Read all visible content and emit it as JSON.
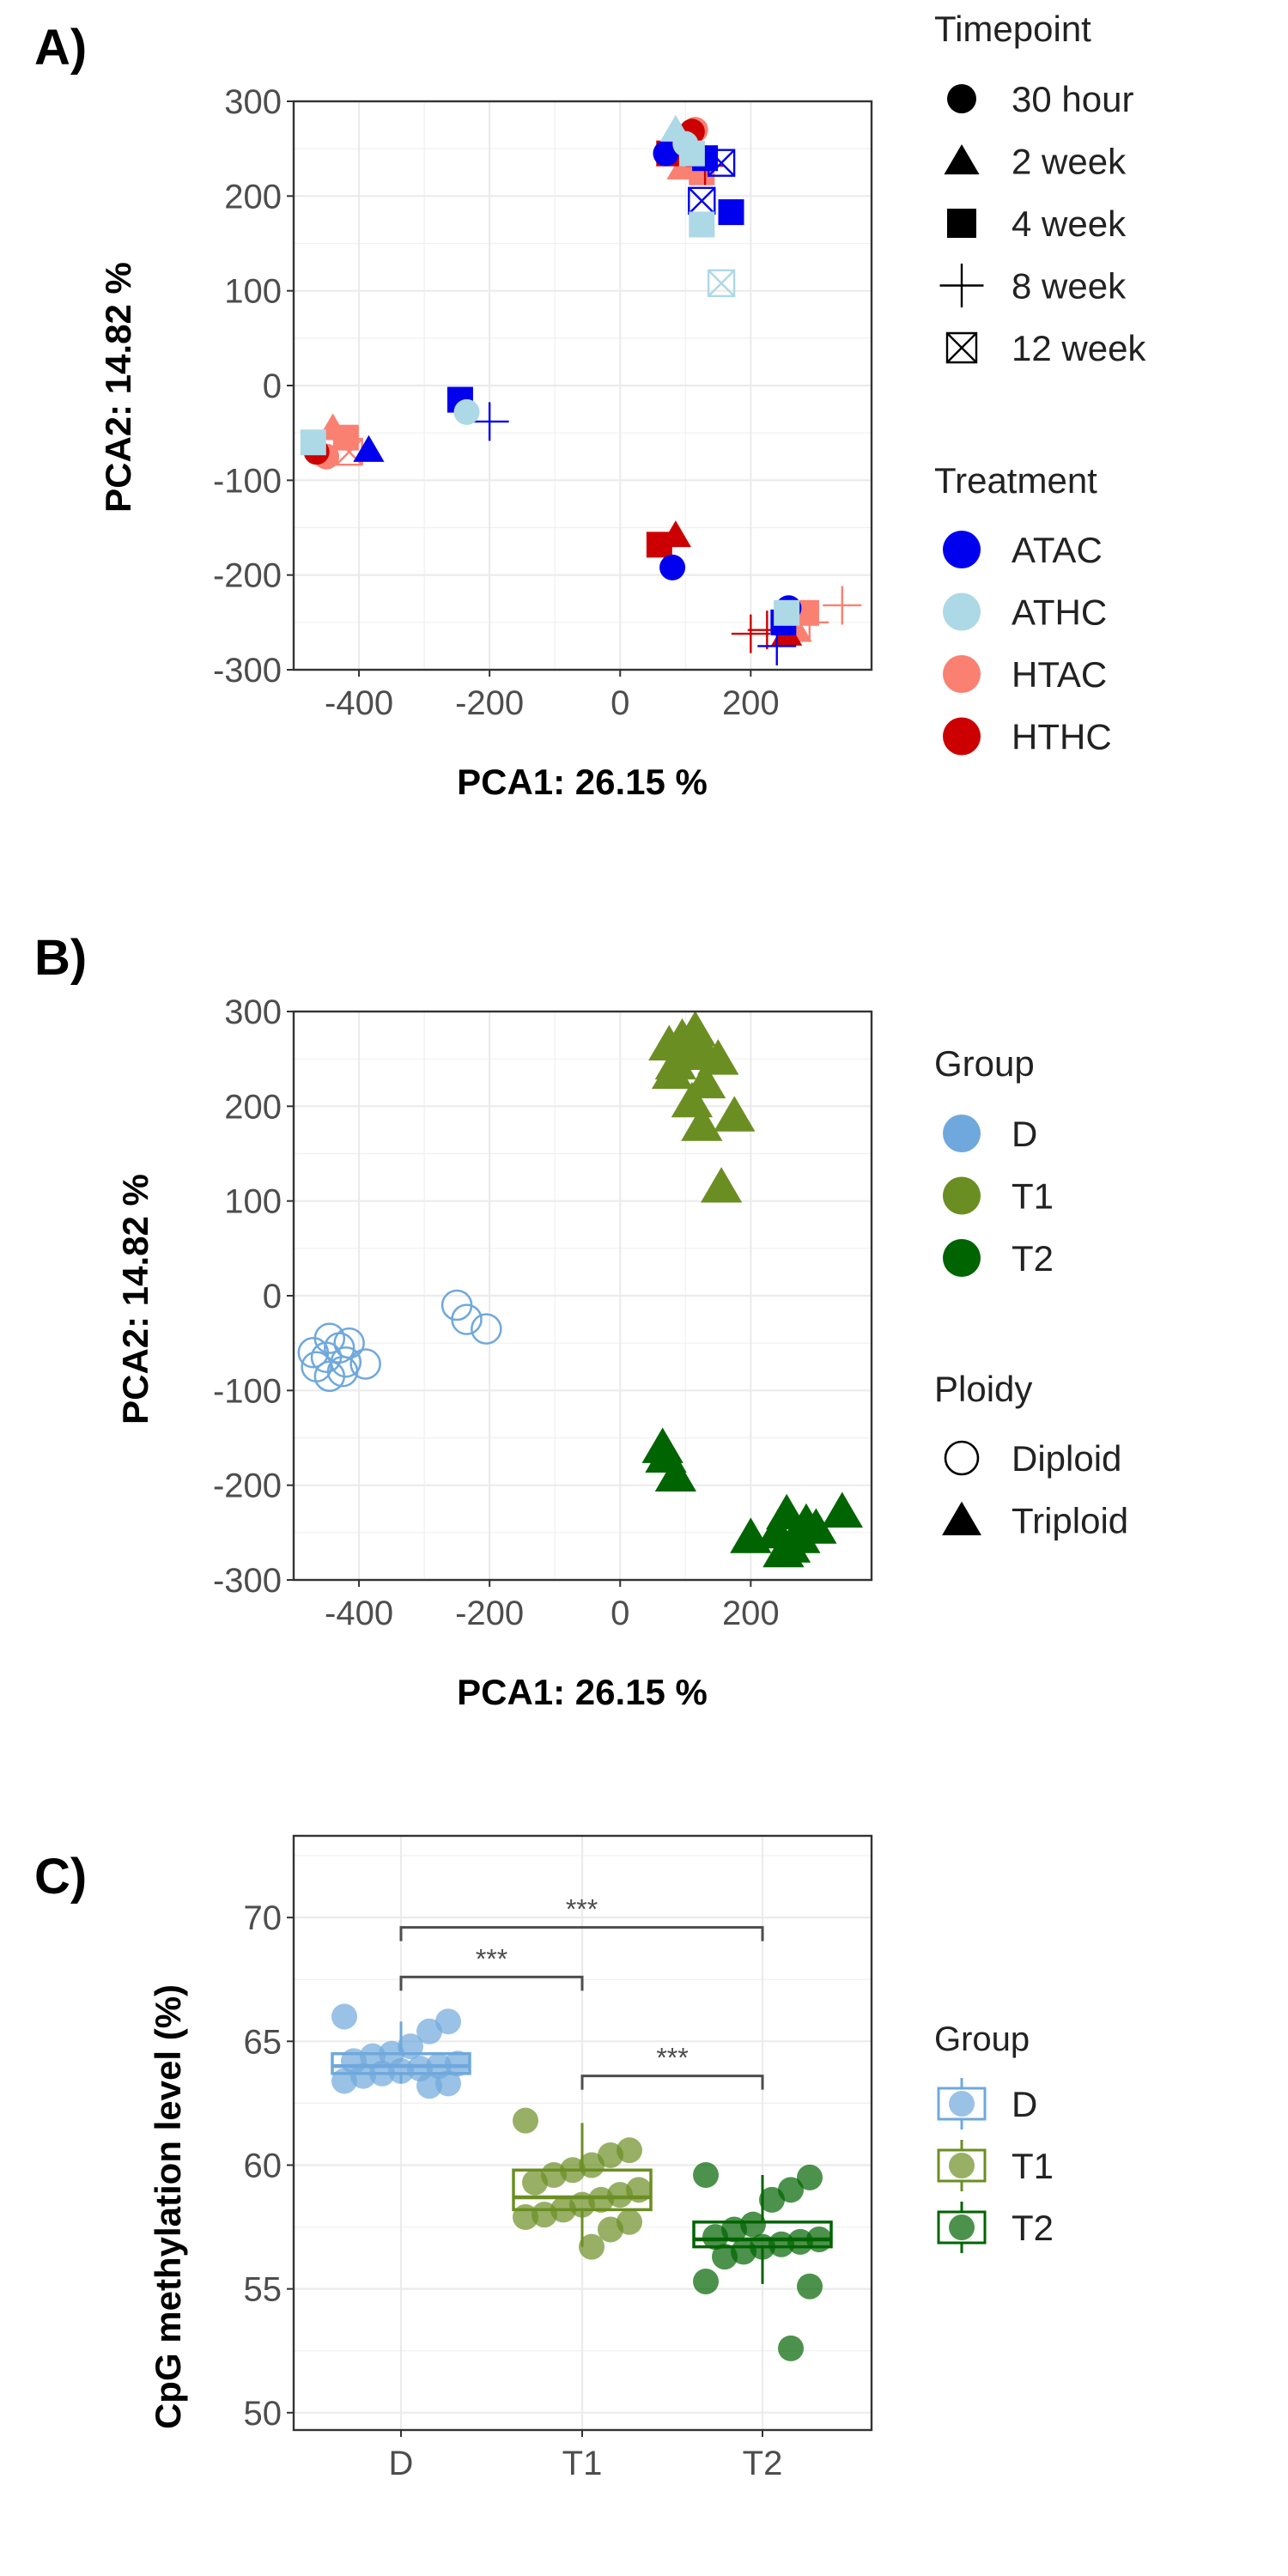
{
  "panels": {
    "a": {
      "letter": "A)",
      "xlabel": "PCA1: 26.15 %",
      "ylabel": "PCA2: 14.82 %",
      "xticks": [
        "-400",
        "-200",
        "0",
        "200"
      ],
      "yticks": [
        "300",
        "200",
        "100",
        "0",
        "-100",
        "-200",
        "-300"
      ],
      "legend_timepoint": {
        "title": "Timepoint",
        "items": [
          {
            "label": "30 hour",
            "shape": "circle"
          },
          {
            "label": "2 week",
            "shape": "triangle"
          },
          {
            "label": "4 week",
            "shape": "square"
          },
          {
            "label": "8 week",
            "shape": "plus"
          },
          {
            "label": "12 week",
            "shape": "boxed-x"
          }
        ]
      },
      "legend_treatment": {
        "title": "Treatment",
        "items": [
          {
            "label": "ATAC",
            "color": "#0000EE"
          },
          {
            "label": "ATHC",
            "color": "#ADD8E6"
          },
          {
            "label": "HTAC",
            "color": "#FA8072"
          },
          {
            "label": "HTHC",
            "color": "#CC0000"
          }
        ]
      }
    },
    "b": {
      "letter": "B)",
      "xlabel": "PCA1: 26.15 %",
      "ylabel": "PCA2: 14.82 %",
      "xticks": [
        "-400",
        "-200",
        "0",
        "200"
      ],
      "yticks": [
        "300",
        "200",
        "100",
        "0",
        "-100",
        "-200",
        "-300"
      ],
      "legend_group": {
        "title": "Group",
        "items": [
          {
            "label": "D",
            "color": "#6FA8DC"
          },
          {
            "label": "T1",
            "color": "#6B8E23"
          },
          {
            "label": "T2",
            "color": "#006400"
          }
        ]
      },
      "legend_ploidy": {
        "title": "Ploidy",
        "items": [
          {
            "label": "Diploid",
            "shape": "open-circle"
          },
          {
            "label": "Triploid",
            "shape": "triangle"
          }
        ]
      }
    },
    "c": {
      "letter": "C)",
      "ylabel": "CpG methylation level (%)",
      "xticks": [
        "D",
        "T1",
        "T2"
      ],
      "yticks": [
        "70",
        "65",
        "60",
        "55",
        "50"
      ],
      "sig_labels": [
        "***",
        "***",
        "***"
      ],
      "legend_group": {
        "title": "Group",
        "items": [
          {
            "label": "D",
            "color": "#6FA8DC"
          },
          {
            "label": "T1",
            "color": "#6B8E23"
          },
          {
            "label": "T2",
            "color": "#006400"
          }
        ]
      }
    }
  },
  "chart_data": [
    {
      "type": "scatter",
      "xlabel": "PCA1: 26.15 %",
      "ylabel": "PCA2: 14.82 %",
      "xlim": [
        -500,
        385
      ],
      "ylim": [
        -300,
        300
      ],
      "grid": true,
      "legend": "right",
      "series": [
        {
          "name": "ATAC",
          "color": "#0000EE",
          "points": [
            {
              "x": 70,
              "y": 245,
              "shape": "circle"
            },
            {
              "x": -385,
              "y": -68,
              "shape": "triangle"
            },
            {
              "x": 130,
              "y": 240,
              "shape": "square"
            },
            {
              "x": 170,
              "y": 183,
              "shape": "square"
            },
            {
              "x": -245,
              "y": -15,
              "shape": "square"
            },
            {
              "x": -200,
              "y": -38,
              "shape": "plus"
            },
            {
              "x": 240,
              "y": -275,
              "shape": "plus"
            },
            {
              "x": 155,
              "y": 235,
              "shape": "boxed-x"
            },
            {
              "x": 125,
              "y": 195,
              "shape": "boxed-x"
            },
            {
              "x": 80,
              "y": -192,
              "shape": "circle"
            },
            {
              "x": 258,
              "y": -235,
              "shape": "circle"
            },
            {
              "x": 250,
              "y": -250,
              "shape": "square"
            }
          ]
        },
        {
          "name": "ATHC",
          "color": "#ADD8E6",
          "points": [
            {
              "x": 100,
              "y": 255,
              "shape": "circle"
            },
            {
              "x": 85,
              "y": 270,
              "shape": "triangle"
            },
            {
              "x": 125,
              "y": 170,
              "shape": "square"
            },
            {
              "x": 155,
              "y": 108,
              "shape": "boxed-x"
            },
            {
              "x": -235,
              "y": -28,
              "shape": "circle"
            },
            {
              "x": -470,
              "y": -60,
              "shape": "square"
            },
            {
              "x": 255,
              "y": -240,
              "shape": "square"
            },
            {
              "x": 110,
              "y": 245,
              "shape": "square"
            }
          ]
        },
        {
          "name": "HTAC",
          "color": "#FA8072",
          "points": [
            {
              "x": 115,
              "y": 270,
              "shape": "circle"
            },
            {
              "x": 95,
              "y": 230,
              "shape": "triangle"
            },
            {
              "x": 125,
              "y": 225,
              "shape": "square"
            },
            {
              "x": -440,
              "y": -45,
              "shape": "triangle"
            },
            {
              "x": -420,
              "y": -55,
              "shape": "square"
            },
            {
              "x": -450,
              "y": -75,
              "shape": "circle"
            },
            {
              "x": -415,
              "y": -70,
              "shape": "boxed-x"
            },
            {
              "x": 340,
              "y": -232,
              "shape": "plus"
            },
            {
              "x": 285,
              "y": -240,
              "shape": "square"
            },
            {
              "x": 270,
              "y": -258,
              "shape": "triangle"
            },
            {
              "x": 290,
              "y": -250,
              "shape": "plus"
            }
          ]
        },
        {
          "name": "HTHC",
          "color": "#CC0000",
          "points": [
            {
              "x": 110,
              "y": 268,
              "shape": "circle"
            },
            {
              "x": 75,
              "y": 245,
              "shape": "square"
            },
            {
              "x": 130,
              "y": 232,
              "shape": "plus"
            },
            {
              "x": 60,
              "y": -168,
              "shape": "square"
            },
            {
              "x": 85,
              "y": -158,
              "shape": "triangle"
            },
            {
              "x": -465,
              "y": -70,
              "shape": "circle"
            },
            {
              "x": 200,
              "y": -262,
              "shape": "plus"
            },
            {
              "x": 225,
              "y": -258,
              "shape": "plus"
            },
            {
              "x": 255,
              "y": -262,
              "shape": "triangle"
            }
          ]
        }
      ]
    },
    {
      "type": "scatter",
      "xlabel": "PCA1: 26.15 %",
      "ylabel": "PCA2: 14.82 %",
      "xlim": [
        -500,
        385
      ],
      "ylim": [
        -300,
        300
      ],
      "grid": true,
      "legend": "right",
      "series": [
        {
          "name": "D",
          "color": "#6FA8DC",
          "shape": "open-circle",
          "points": [
            {
              "x": -250,
              "y": -10
            },
            {
              "x": -235,
              "y": -25
            },
            {
              "x": -205,
              "y": -35
            },
            {
              "x": -470,
              "y": -60
            },
            {
              "x": -465,
              "y": -75
            },
            {
              "x": -445,
              "y": -45
            },
            {
              "x": -430,
              "y": -55
            },
            {
              "x": -420,
              "y": -70
            },
            {
              "x": -445,
              "y": -85
            },
            {
              "x": -415,
              "y": -50
            },
            {
              "x": -390,
              "y": -72
            },
            {
              "x": -425,
              "y": -80
            },
            {
              "x": -450,
              "y": -65
            }
          ]
        },
        {
          "name": "T1",
          "color": "#6B8E23",
          "shape": "triangle",
          "points": [
            {
              "x": 75,
              "y": 265
            },
            {
              "x": 95,
              "y": 272
            },
            {
              "x": 115,
              "y": 280
            },
            {
              "x": 85,
              "y": 245
            },
            {
              "x": 105,
              "y": 255
            },
            {
              "x": 125,
              "y": 262
            },
            {
              "x": 150,
              "y": 250
            },
            {
              "x": 80,
              "y": 235
            },
            {
              "x": 130,
              "y": 225
            },
            {
              "x": 110,
              "y": 205
            },
            {
              "x": 175,
              "y": 190
            },
            {
              "x": 125,
              "y": 180
            },
            {
              "x": 155,
              "y": 115
            }
          ]
        },
        {
          "name": "T2",
          "color": "#006400",
          "shape": "triangle",
          "points": [
            {
              "x": 65,
              "y": -160
            },
            {
              "x": 70,
              "y": -170
            },
            {
              "x": 85,
              "y": -190
            },
            {
              "x": 200,
              "y": -255
            },
            {
              "x": 240,
              "y": -250
            },
            {
              "x": 255,
              "y": -230
            },
            {
              "x": 260,
              "y": -265
            },
            {
              "x": 285,
              "y": -240
            },
            {
              "x": 300,
              "y": -245
            },
            {
              "x": 340,
              "y": -228
            },
            {
              "x": 250,
              "y": -270
            },
            {
              "x": 275,
              "y": -255
            }
          ]
        }
      ]
    },
    {
      "type": "box",
      "xlabel": "",
      "ylabel": "CpG methylation level (%)",
      "categories": [
        "D",
        "T1",
        "T2"
      ],
      "ylim": [
        49.3,
        73.3
      ],
      "grid": true,
      "legend": "right",
      "series": [
        {
          "name": "D",
          "color": "#6FA8DC",
          "box": {
            "q1": 63.7,
            "median": 64.0,
            "q3": 64.5,
            "whisker_low": 63.3,
            "whisker_high": 65.8
          },
          "values": [
            66.0,
            65.8,
            65.4,
            64.8,
            64.5,
            64.4,
            64.2,
            64.1,
            64.0,
            63.9,
            63.8,
            63.7,
            63.6,
            63.4,
            63.3,
            63.2
          ]
        },
        {
          "name": "T1",
          "color": "#6B8E23",
          "box": {
            "q1": 58.2,
            "median": 58.7,
            "q3": 59.8,
            "whisker_low": 56.7,
            "whisker_high": 61.7
          },
          "values": [
            61.8,
            60.6,
            60.4,
            60.0,
            59.8,
            59.6,
            59.3,
            59.0,
            58.8,
            58.6,
            58.4,
            58.2,
            58.0,
            57.9,
            57.7,
            57.4,
            56.7
          ]
        },
        {
          "name": "T2",
          "color": "#006400",
          "box": {
            "q1": 56.7,
            "median": 57.0,
            "q3": 57.7,
            "whisker_low": 55.2,
            "whisker_high": 59.6
          },
          "values": [
            59.6,
            59.5,
            59.0,
            58.6,
            57.6,
            57.4,
            57.1,
            57.0,
            56.9,
            56.8,
            56.7,
            56.5,
            56.3,
            55.3,
            55.1,
            52.6
          ]
        }
      ],
      "comparisons": [
        {
          "from": "D",
          "to": "T1",
          "y": 67.6,
          "label": "***"
        },
        {
          "from": "D",
          "to": "T2",
          "y": 69.6,
          "label": "***"
        },
        {
          "from": "T1",
          "to": "T2",
          "y": 63.6,
          "label": "***"
        }
      ]
    }
  ]
}
